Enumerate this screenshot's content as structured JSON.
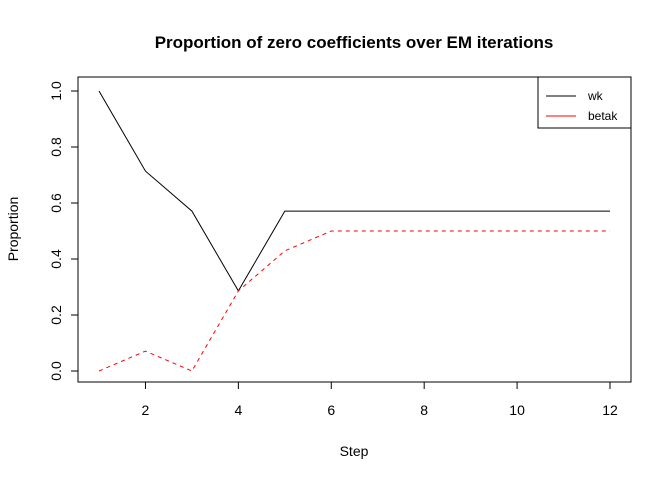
{
  "chart_data": {
    "type": "line",
    "title": "Proportion of zero coefficients over EM iterations",
    "xlabel": "Step",
    "ylabel": "Proportion",
    "xlim": [
      1,
      12
    ],
    "ylim": [
      0,
      1
    ],
    "x_ticks": [
      "2",
      "4",
      "6",
      "8",
      "10",
      "12"
    ],
    "y_ticks": [
      "0.0",
      "0.2",
      "0.4",
      "0.6",
      "0.8",
      "1.0"
    ],
    "x": [
      1,
      2,
      3,
      4,
      5,
      6,
      7,
      8,
      9,
      10,
      11,
      12
    ],
    "series": [
      {
        "name": "wk",
        "color": "#000000",
        "line_style": "solid",
        "values": [
          1.0,
          0.714,
          0.571,
          0.286,
          0.571,
          0.571,
          0.571,
          0.571,
          0.571,
          0.571,
          0.571,
          0.571
        ]
      },
      {
        "name": "betak",
        "color": "#ff0000",
        "line_style": "dashed",
        "values": [
          0.0,
          0.071,
          0.0,
          0.286,
          0.429,
          0.5,
          0.5,
          0.5,
          0.5,
          0.5,
          0.5,
          0.5
        ]
      }
    ],
    "legend_position": "top-right",
    "grid": false
  }
}
